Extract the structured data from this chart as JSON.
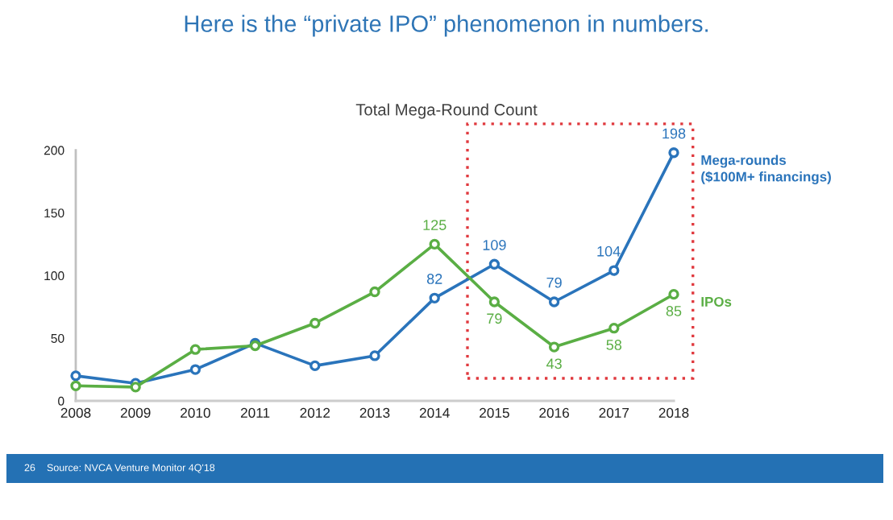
{
  "chart_data": {
    "type": "line",
    "title": "Here is the “private IPO” phenomenon in numbers.",
    "subtitle": "Total Mega-Round Count",
    "x": [
      2008,
      2009,
      2010,
      2011,
      2012,
      2013,
      2014,
      2015,
      2016,
      2017,
      2018
    ],
    "xlim": [
      2008,
      2018
    ],
    "xticks": [
      2008,
      2009,
      2010,
      2011,
      2012,
      2013,
      2014,
      2015,
      2016,
      2017,
      2018
    ],
    "ylim": [
      0,
      200
    ],
    "yticks": [
      0,
      50,
      100,
      150,
      200
    ],
    "series": [
      {
        "name": "Mega-rounds\n($100M+ financings)",
        "color": "#2a74bb",
        "values": [
          20,
          14,
          25,
          46,
          28,
          36,
          82,
          109,
          79,
          104,
          198
        ],
        "value_labels": [
          null,
          null,
          null,
          null,
          null,
          null,
          "82",
          "109",
          "79",
          "104",
          "198"
        ]
      },
      {
        "name": "IPOs",
        "color": "#5aae44",
        "values": [
          12,
          11,
          41,
          44,
          62,
          87,
          125,
          79,
          43,
          58,
          85
        ],
        "value_labels": [
          null,
          null,
          null,
          null,
          null,
          null,
          "125",
          "79",
          "43",
          "58",
          "85"
        ]
      }
    ],
    "marker": "circle",
    "line_style": "solid",
    "annotations": [
      "26",
      "Source: NVCA Venture Monitor 4Q'18"
    ]
  }
}
